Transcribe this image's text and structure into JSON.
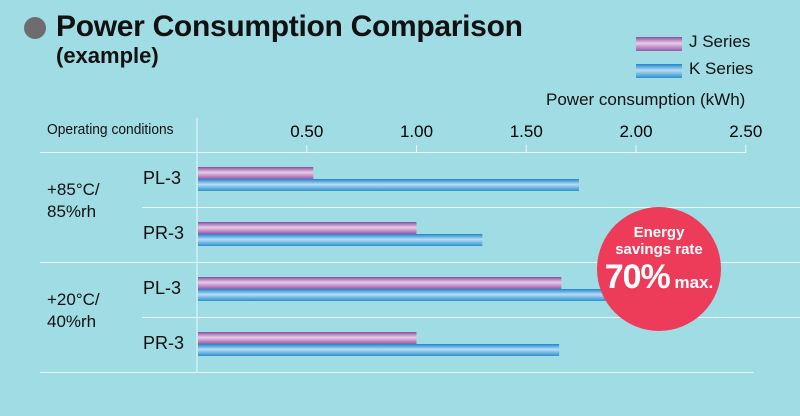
{
  "header": {
    "title": "Power Consumption Comparison",
    "subtitle": "(example)"
  },
  "legend": [
    {
      "name": "J Series",
      "color": "#9b5aa8"
    },
    {
      "name": "K Series",
      "color": "#2a90d0"
    }
  ],
  "badge": {
    "line1": "Energy",
    "line2": "savings rate",
    "value": "70%",
    "suffix": "max."
  },
  "chart_data": {
    "type": "bar",
    "orientation": "horizontal",
    "title": "Power Consumption Comparison",
    "subtitle": "(example)",
    "xlabel": "Power consumption (kWh)",
    "ylabel": "Operating conditions",
    "xlim": [
      0,
      2.5
    ],
    "xticks": [
      "0.50",
      "1.00",
      "1.50",
      "2.00",
      "2.50"
    ],
    "xtick_values": [
      0.5,
      1.0,
      1.5,
      2.0,
      2.5
    ],
    "legend_position": "top-right",
    "grid": false,
    "groups": [
      {
        "label_line1": "+85°C/",
        "label_line2": "85%rh",
        "categories": [
          "PL-3",
          "PR-3"
        ]
      },
      {
        "label_line1": "+20°C/",
        "label_line2": "40%rh",
        "categories": [
          "PL-3",
          "PR-3"
        ]
      }
    ],
    "categories": [
      "+85°C/85%rh PL-3",
      "+85°C/85%rh PR-3",
      "+20°C/40%rh PL-3",
      "+20°C/40%rh PR-3"
    ],
    "series": [
      {
        "name": "J Series",
        "values": [
          0.53,
          1.0,
          1.66,
          1.0
        ]
      },
      {
        "name": "K Series",
        "values": [
          1.74,
          1.3,
          2.32,
          1.65
        ]
      }
    ]
  }
}
